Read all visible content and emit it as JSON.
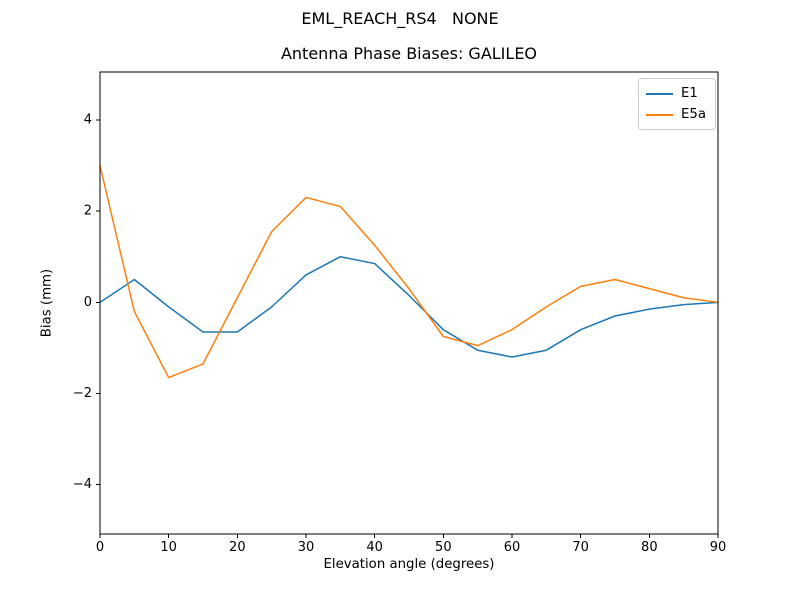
{
  "chart_data": {
    "type": "line",
    "suptitle": "EML_REACH_RS4   NONE",
    "title": "Antenna Phase Biases: GALILEO",
    "xlabel": "Elevation angle (degrees)",
    "ylabel": "Bias (mm)",
    "xlim": [
      0,
      90
    ],
    "ylim": [
      -5.08,
      5.05
    ],
    "x_ticks": [
      0,
      10,
      20,
      30,
      40,
      50,
      60,
      70,
      80,
      90
    ],
    "y_ticks": [
      -4,
      -2,
      0,
      2,
      4
    ],
    "grid": false,
    "legend_position": "upper right",
    "x": [
      0,
      5,
      10,
      15,
      20,
      25,
      30,
      35,
      40,
      45,
      50,
      55,
      60,
      65,
      70,
      75,
      80,
      85,
      90
    ],
    "series": [
      {
        "name": "E1",
        "color": "#1f77b4",
        "values": [
          0.0,
          0.5,
          -0.1,
          -0.65,
          -0.65,
          -0.1,
          0.6,
          1.0,
          0.85,
          0.15,
          -0.6,
          -1.05,
          -1.2,
          -1.05,
          -0.6,
          -0.3,
          -0.15,
          -0.05,
          0.0
        ]
      },
      {
        "name": "E5a",
        "color": "#ff7f0e",
        "values": [
          3.0,
          -0.2,
          -1.65,
          -1.35,
          0.1,
          1.55,
          2.3,
          2.1,
          1.25,
          0.3,
          -0.75,
          -0.95,
          -0.6,
          -0.1,
          0.35,
          0.5,
          0.3,
          0.1,
          0.0
        ]
      }
    ]
  }
}
